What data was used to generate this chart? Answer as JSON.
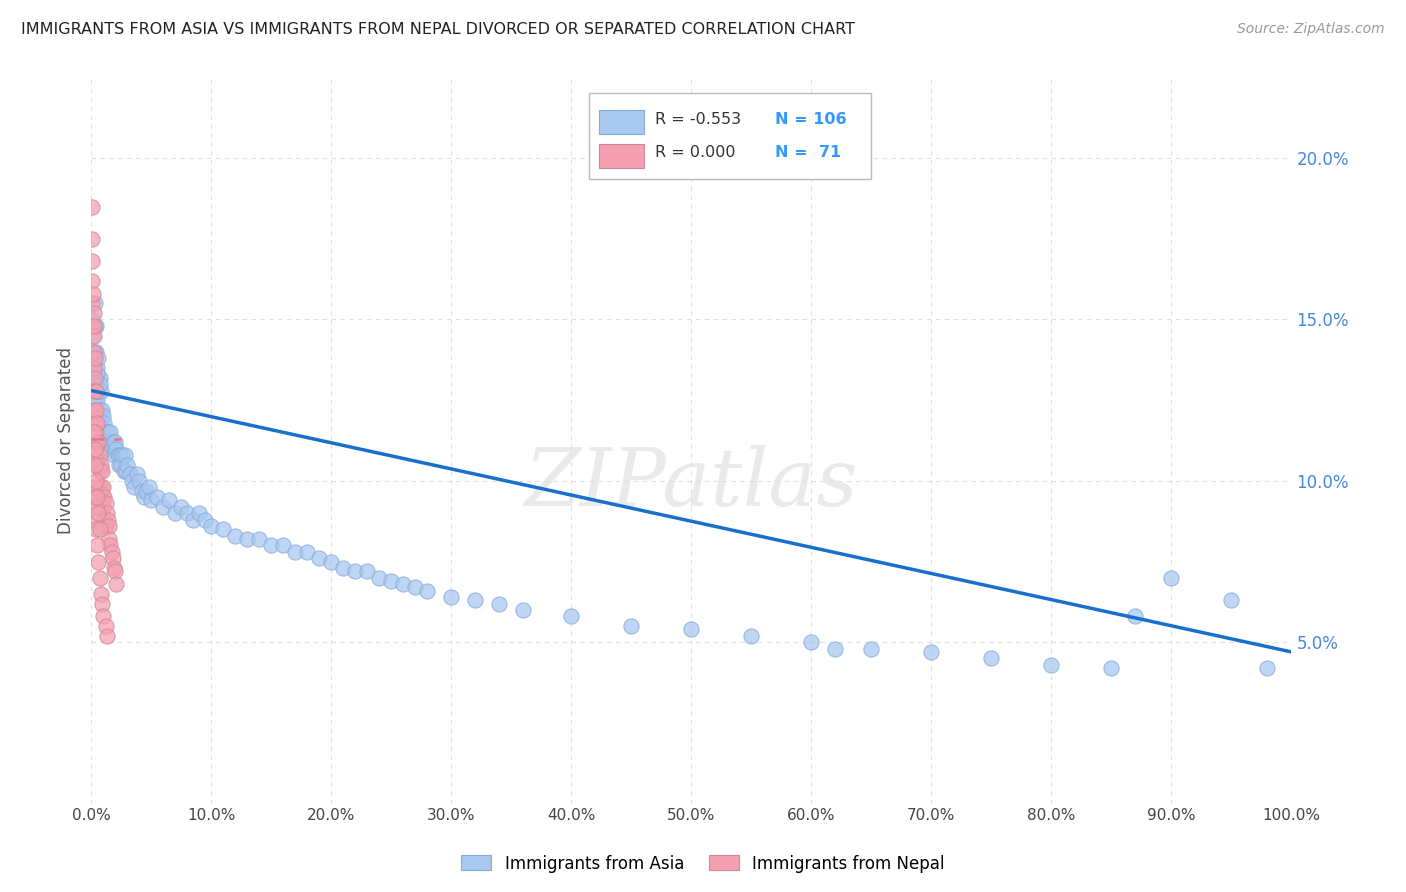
{
  "title": "IMMIGRANTS FROM ASIA VS IMMIGRANTS FROM NEPAL DIVORCED OR SEPARATED CORRELATION CHART",
  "source": "Source: ZipAtlas.com",
  "ylabel": "Divorced or Separated",
  "watermark": "ZIPatlas",
  "background_color": "#ffffff",
  "grid_color": "#e0e0e0",
  "title_color": "#222222",
  "source_color": "#999999",
  "asia_color": "#a8c8f0",
  "nepal_color": "#f4a0b0",
  "trendline_asia_color": "#1a6fcc",
  "trendline_nepal_color": "#e87090",
  "legend_asia_R": "-0.553",
  "legend_asia_N": "106",
  "legend_nepal_R": "0.000",
  "legend_nepal_N": "71",
  "xlim": [
    0.0,
    1.0
  ],
  "ylim": [
    0.0,
    0.225
  ],
  "yaxis_ticks": [
    0.05,
    0.1,
    0.15,
    0.2
  ],
  "yaxis_labels": [
    "5.0%",
    "10.0%",
    "15.0%",
    "20.0%"
  ],
  "xaxis_ticks": [
    0.0,
    0.1,
    0.2,
    0.3,
    0.4,
    0.5,
    0.6,
    0.7,
    0.8,
    0.9,
    1.0
  ],
  "xaxis_labels": [
    "0.0%",
    "10.0%",
    "20.0%",
    "30.0%",
    "40.0%",
    "50.0%",
    "60.0%",
    "70.0%",
    "80.0%",
    "90.0%",
    "100.0%"
  ],
  "asia_x": [
    0.001,
    0.001,
    0.002,
    0.002,
    0.003,
    0.003,
    0.003,
    0.004,
    0.004,
    0.005,
    0.005,
    0.005,
    0.006,
    0.006,
    0.007,
    0.007,
    0.008,
    0.008,
    0.009,
    0.009,
    0.01,
    0.01,
    0.011,
    0.011,
    0.012,
    0.013,
    0.014,
    0.015,
    0.016,
    0.017,
    0.018,
    0.019,
    0.02,
    0.021,
    0.022,
    0.023,
    0.024,
    0.025,
    0.026,
    0.027,
    0.028,
    0.029,
    0.03,
    0.032,
    0.034,
    0.036,
    0.038,
    0.04,
    0.042,
    0.044,
    0.046,
    0.048,
    0.05,
    0.055,
    0.06,
    0.065,
    0.07,
    0.075,
    0.08,
    0.085,
    0.09,
    0.095,
    0.1,
    0.11,
    0.12,
    0.13,
    0.14,
    0.15,
    0.16,
    0.17,
    0.18,
    0.19,
    0.2,
    0.21,
    0.22,
    0.23,
    0.24,
    0.25,
    0.26,
    0.27,
    0.28,
    0.3,
    0.32,
    0.34,
    0.36,
    0.4,
    0.45,
    0.5,
    0.55,
    0.6,
    0.62,
    0.65,
    0.7,
    0.75,
    0.8,
    0.85,
    0.87,
    0.9,
    0.95,
    0.98,
    0.003,
    0.004,
    0.004,
    0.005,
    0.006,
    0.007
  ],
  "asia_y": [
    0.15,
    0.145,
    0.14,
    0.135,
    0.148,
    0.13,
    0.125,
    0.132,
    0.128,
    0.135,
    0.125,
    0.118,
    0.128,
    0.12,
    0.132,
    0.122,
    0.128,
    0.118,
    0.122,
    0.115,
    0.12,
    0.112,
    0.118,
    0.11,
    0.115,
    0.112,
    0.115,
    0.112,
    0.115,
    0.11,
    0.112,
    0.108,
    0.112,
    0.11,
    0.108,
    0.105,
    0.108,
    0.105,
    0.108,
    0.103,
    0.108,
    0.103,
    0.105,
    0.102,
    0.1,
    0.098,
    0.102,
    0.1,
    0.097,
    0.095,
    0.097,
    0.098,
    0.094,
    0.095,
    0.092,
    0.094,
    0.09,
    0.092,
    0.09,
    0.088,
    0.09,
    0.088,
    0.086,
    0.085,
    0.083,
    0.082,
    0.082,
    0.08,
    0.08,
    0.078,
    0.078,
    0.076,
    0.075,
    0.073,
    0.072,
    0.072,
    0.07,
    0.069,
    0.068,
    0.067,
    0.066,
    0.064,
    0.063,
    0.062,
    0.06,
    0.058,
    0.055,
    0.054,
    0.052,
    0.05,
    0.048,
    0.048,
    0.047,
    0.045,
    0.043,
    0.042,
    0.058,
    0.07,
    0.063,
    0.042,
    0.155,
    0.14,
    0.148,
    0.133,
    0.138,
    0.13
  ],
  "nepal_x": [
    0.0005,
    0.0005,
    0.001,
    0.001,
    0.001,
    0.001,
    0.0015,
    0.002,
    0.002,
    0.002,
    0.002,
    0.0025,
    0.003,
    0.003,
    0.003,
    0.003,
    0.003,
    0.004,
    0.004,
    0.004,
    0.004,
    0.005,
    0.005,
    0.005,
    0.006,
    0.006,
    0.006,
    0.007,
    0.007,
    0.007,
    0.008,
    0.008,
    0.009,
    0.009,
    0.01,
    0.01,
    0.011,
    0.011,
    0.012,
    0.012,
    0.013,
    0.014,
    0.015,
    0.015,
    0.016,
    0.017,
    0.018,
    0.019,
    0.02,
    0.021,
    0.002,
    0.002,
    0.003,
    0.003,
    0.004,
    0.004,
    0.005,
    0.006,
    0.007,
    0.008,
    0.009,
    0.01,
    0.012,
    0.013,
    0.002,
    0.003,
    0.003,
    0.004,
    0.005,
    0.006,
    0.007
  ],
  "nepal_y": [
    0.185,
    0.168,
    0.175,
    0.162,
    0.155,
    0.148,
    0.158,
    0.152,
    0.145,
    0.14,
    0.135,
    0.148,
    0.138,
    0.132,
    0.128,
    0.122,
    0.118,
    0.128,
    0.122,
    0.115,
    0.108,
    0.118,
    0.112,
    0.105,
    0.112,
    0.105,
    0.098,
    0.108,
    0.103,
    0.096,
    0.105,
    0.098,
    0.103,
    0.096,
    0.098,
    0.092,
    0.095,
    0.088,
    0.093,
    0.086,
    0.09,
    0.088,
    0.086,
    0.082,
    0.08,
    0.078,
    0.076,
    0.073,
    0.072,
    0.068,
    0.098,
    0.092,
    0.095,
    0.088,
    0.092,
    0.085,
    0.08,
    0.075,
    0.07,
    0.065,
    0.062,
    0.058,
    0.055,
    0.052,
    0.115,
    0.11,
    0.105,
    0.1,
    0.095,
    0.09,
    0.085
  ],
  "trendline_asia_x0": 0.0,
  "trendline_asia_x1": 1.0,
  "trendline_asia_y0": 0.128,
  "trendline_asia_y1": 0.047,
  "trendline_nepal_x0": 0.0,
  "trendline_nepal_x1": 0.025,
  "trendline_nepal_y": 0.113
}
